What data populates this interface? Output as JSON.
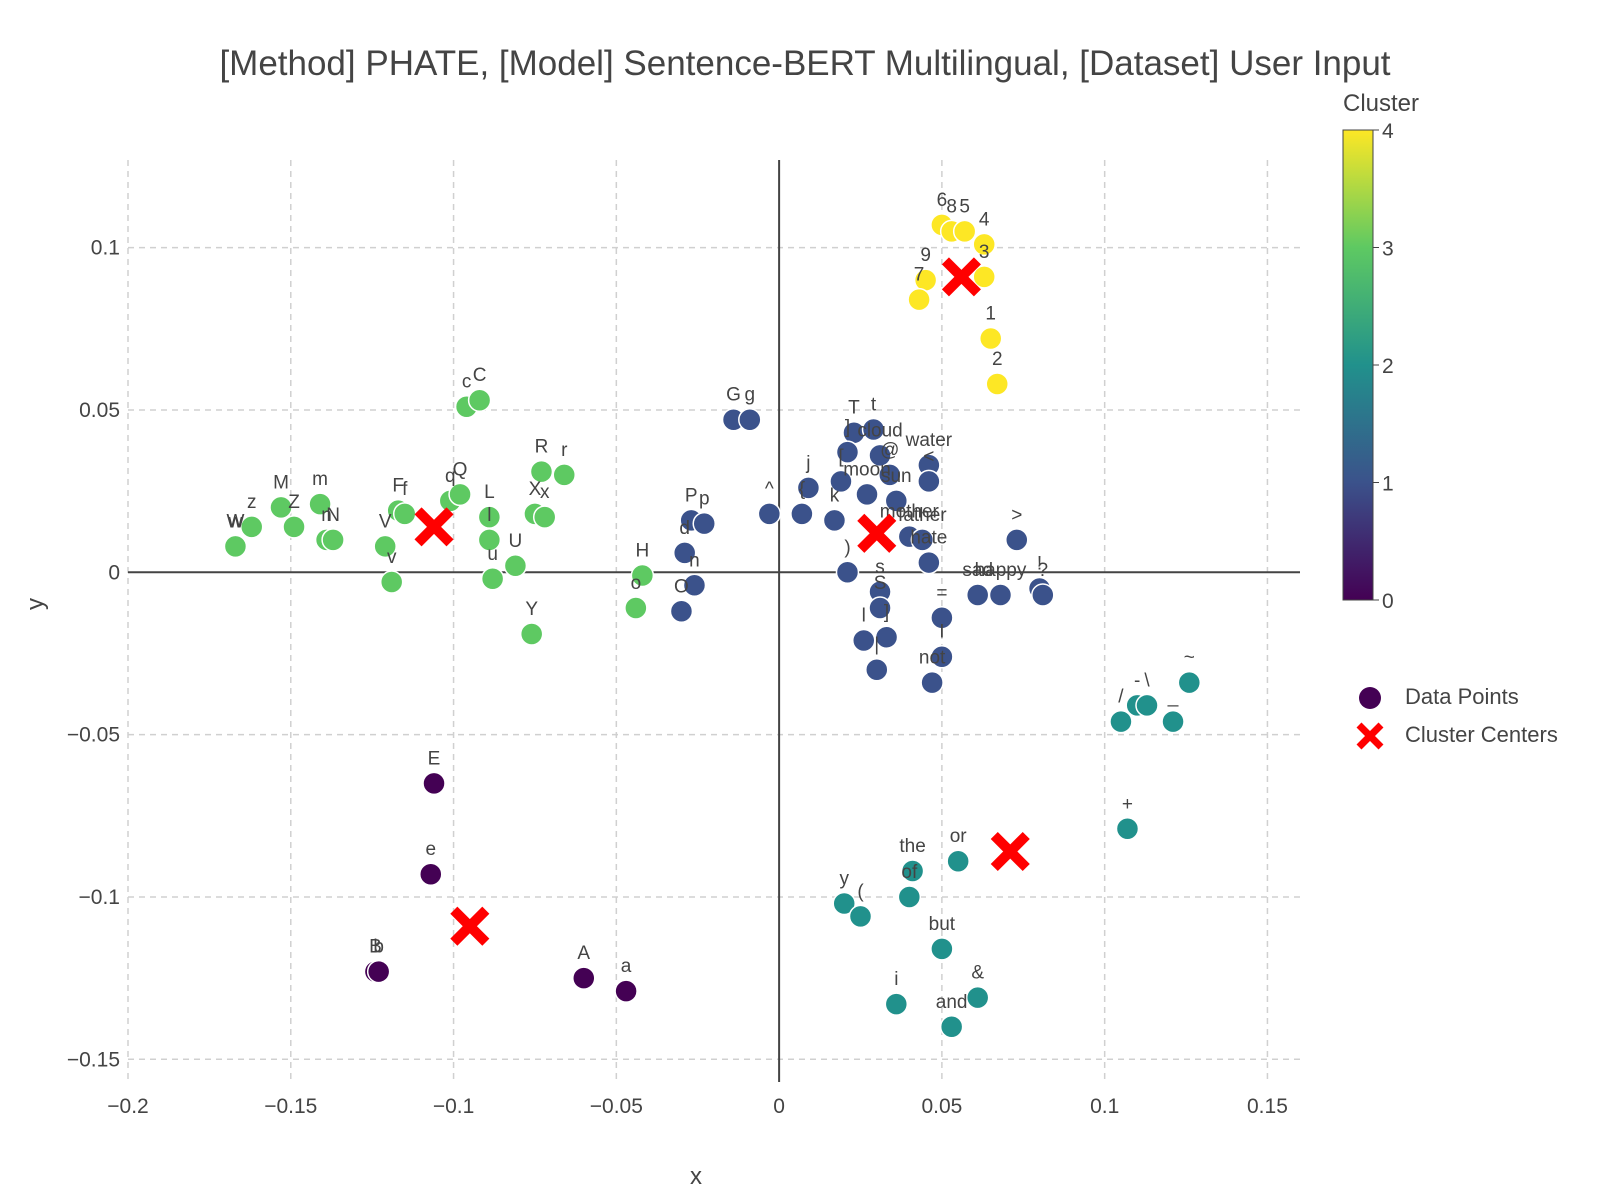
{
  "title": "[Method] PHATE, [Model] Sentence-BERT Multilingual, [Dataset] User Input",
  "colorbar": {
    "title": "Cluster",
    "ticks": [
      "0",
      "1",
      "2",
      "3",
      "4"
    ],
    "colormap": "viridis",
    "stops": [
      "#440154",
      "#3b528b",
      "#21918c",
      "#5ec962",
      "#fde725"
    ]
  },
  "legend": {
    "items": [
      {
        "label": "Data Points",
        "color": "#440154",
        "symbol": "circle"
      },
      {
        "label": "Cluster Centers",
        "color": "#ff0000",
        "symbol": "x"
      }
    ]
  },
  "chart_data": {
    "type": "scatter",
    "title": "[Method] PHATE, [Model] Sentence-BERT Multilingual, [Dataset] User Input",
    "xlabel": "x",
    "ylabel": "y",
    "xlim": [
      -0.2,
      0.16
    ],
    "ylim": [
      -0.157,
      0.127
    ],
    "x_ticks": [
      -0.2,
      -0.15,
      -0.1,
      -0.05,
      0,
      0.05,
      0.1,
      0.15
    ],
    "x_tick_labels": [
      "−0.2",
      "−0.15",
      "−0.1",
      "−0.05",
      "0",
      "0.05",
      "0.1",
      "0.15"
    ],
    "y_ticks": [
      -0.15,
      -0.1,
      -0.05,
      0,
      0.05,
      0.1
    ],
    "y_tick_labels": [
      "−0.15",
      "−0.1",
      "−0.05",
      "0",
      "0.05",
      "0.1"
    ],
    "grid": true,
    "legend_position": "right",
    "cluster_colors": [
      "#440154",
      "#3b528b",
      "#21918c",
      "#5ec962",
      "#fde725"
    ],
    "points": [
      {
        "label": "E",
        "x": -0.106,
        "y": -0.065,
        "cluster": 0
      },
      {
        "label": "e",
        "x": -0.107,
        "y": -0.093,
        "cluster": 0
      },
      {
        "label": "B",
        "x": -0.124,
        "y": -0.123,
        "cluster": 0
      },
      {
        "label": "b",
        "x": -0.123,
        "y": -0.123,
        "cluster": 0
      },
      {
        "label": "A",
        "x": -0.06,
        "y": -0.125,
        "cluster": 0
      },
      {
        "label": "a",
        "x": -0.047,
        "y": -0.129,
        "cluster": 0
      },
      {
        "label": "G",
        "x": -0.014,
        "y": 0.047,
        "cluster": 1
      },
      {
        "label": "g",
        "x": -0.009,
        "y": 0.047,
        "cluster": 1
      },
      {
        "label": "P",
        "x": -0.027,
        "y": 0.016,
        "cluster": 1
      },
      {
        "label": "p",
        "x": -0.023,
        "y": 0.015,
        "cluster": 1
      },
      {
        "label": "d",
        "x": -0.029,
        "y": 0.006,
        "cluster": 1
      },
      {
        "label": "n",
        "x": -0.026,
        "y": -0.004,
        "cluster": 1
      },
      {
        "label": "O",
        "x": -0.03,
        "y": -0.012,
        "cluster": 1
      },
      {
        "label": "^",
        "x": -0.003,
        "y": 0.018,
        "cluster": 1
      },
      {
        "label": "{",
        "x": 0.007,
        "y": 0.018,
        "cluster": 1
      },
      {
        "label": "j",
        "x": 0.009,
        "y": 0.026,
        "cluster": 1
      },
      {
        "label": "k",
        "x": 0.017,
        "y": 0.016,
        "cluster": 1
      },
      {
        "label": "T",
        "x": 0.023,
        "y": 0.043,
        "cluster": 1
      },
      {
        "label": "t",
        "x": 0.029,
        "y": 0.044,
        "cluster": 1
      },
      {
        "label": "]",
        "x": 0.021,
        "y": 0.037,
        "cluster": 1
      },
      {
        "label": "[",
        "x": 0.019,
        "y": 0.028,
        "cluster": 1
      },
      {
        "label": "cloud",
        "x": 0.031,
        "y": 0.036,
        "cluster": 1
      },
      {
        "label": "water",
        "x": 0.046,
        "y": 0.033,
        "cluster": 1
      },
      {
        "label": "<",
        "x": 0.046,
        "y": 0.028,
        "cluster": 1
      },
      {
        "label": "@",
        "x": 0.034,
        "y": 0.03,
        "cluster": 1
      },
      {
        "label": "moon",
        "x": 0.027,
        "y": 0.024,
        "cluster": 1
      },
      {
        "label": "sun",
        "x": 0.036,
        "y": 0.022,
        "cluster": 1
      },
      {
        "label": "mother",
        "x": 0.04,
        "y": 0.011,
        "cluster": 1
      },
      {
        "label": "father",
        "x": 0.044,
        "y": 0.01,
        "cluster": 1
      },
      {
        "label": "hate",
        "x": 0.046,
        "y": 0.003,
        "cluster": 1
      },
      {
        "label": ")",
        "x": 0.021,
        "y": 0.0,
        "cluster": 1
      },
      {
        "label": "s",
        "x": 0.031,
        "y": -0.006,
        "cluster": 1
      },
      {
        "label": "S",
        "x": 0.031,
        "y": -0.011,
        "cluster": 1
      },
      {
        "label": "l",
        "x": 0.026,
        "y": -0.021,
        "cluster": 1
      },
      {
        "label": "]",
        "x": 0.033,
        "y": -0.02,
        "cluster": 1
      },
      {
        "label": "|",
        "x": 0.03,
        "y": -0.03,
        "cluster": 1
      },
      {
        "label": "=",
        "x": 0.05,
        "y": -0.014,
        "cluster": 1
      },
      {
        "label": "I",
        "x": 0.05,
        "y": -0.026,
        "cluster": 1
      },
      {
        "label": "not",
        "x": 0.047,
        "y": -0.034,
        "cluster": 1
      },
      {
        "label": "sad",
        "x": 0.061,
        "y": -0.007,
        "cluster": 1
      },
      {
        "label": "happy",
        "x": 0.068,
        "y": -0.007,
        "cluster": 1
      },
      {
        "label": ">",
        "x": 0.073,
        "y": 0.01,
        "cluster": 1
      },
      {
        "label": "!",
        "x": 0.08,
        "y": -0.005,
        "cluster": 1
      },
      {
        "label": "?",
        "x": 0.081,
        "y": -0.007,
        "cluster": 1
      },
      {
        "label": "/",
        "x": 0.105,
        "y": -0.046,
        "cluster": 2
      },
      {
        "label": "-",
        "x": 0.11,
        "y": -0.041,
        "cluster": 2
      },
      {
        "label": "\\",
        "x": 0.113,
        "y": -0.041,
        "cluster": 2
      },
      {
        "label": "_",
        "x": 0.121,
        "y": -0.046,
        "cluster": 2
      },
      {
        "label": "~",
        "x": 0.126,
        "y": -0.034,
        "cluster": 2
      },
      {
        "label": "+",
        "x": 0.107,
        "y": -0.079,
        "cluster": 2
      },
      {
        "label": "the",
        "x": 0.041,
        "y": -0.092,
        "cluster": 2
      },
      {
        "label": "or",
        "x": 0.055,
        "y": -0.089,
        "cluster": 2
      },
      {
        "label": "of",
        "x": 0.04,
        "y": -0.1,
        "cluster": 2
      },
      {
        "label": "y",
        "x": 0.02,
        "y": -0.102,
        "cluster": 2
      },
      {
        "label": "(",
        "x": 0.025,
        "y": -0.106,
        "cluster": 2
      },
      {
        "label": "but",
        "x": 0.05,
        "y": -0.116,
        "cluster": 2
      },
      {
        "label": "&",
        "x": 0.061,
        "y": -0.131,
        "cluster": 2
      },
      {
        "label": "i",
        "x": 0.036,
        "y": -0.133,
        "cluster": 2
      },
      {
        "label": "and",
        "x": 0.053,
        "y": -0.14,
        "cluster": 2
      },
      {
        "label": "c",
        "x": -0.096,
        "y": 0.051,
        "cluster": 3
      },
      {
        "label": "C",
        "x": -0.092,
        "y": 0.053,
        "cluster": 3
      },
      {
        "label": "R",
        "x": -0.073,
        "y": 0.031,
        "cluster": 3
      },
      {
        "label": "r",
        "x": -0.066,
        "y": 0.03,
        "cluster": 3
      },
      {
        "label": "M",
        "x": -0.153,
        "y": 0.02,
        "cluster": 3
      },
      {
        "label": "m",
        "x": -0.141,
        "y": 0.021,
        "cluster": 3
      },
      {
        "label": "Z",
        "x": -0.149,
        "y": 0.014,
        "cluster": 3
      },
      {
        "label": "z",
        "x": -0.162,
        "y": 0.014,
        "cluster": 3
      },
      {
        "label": "W",
        "x": -0.167,
        "y": 0.008,
        "cluster": 3
      },
      {
        "label": "w",
        "x": -0.167,
        "y": 0.008,
        "cluster": 3
      },
      {
        "label": "n",
        "x": -0.139,
        "y": 0.01,
        "cluster": 3
      },
      {
        "label": "N",
        "x": -0.137,
        "y": 0.01,
        "cluster": 3
      },
      {
        "label": "F",
        "x": -0.117,
        "y": 0.019,
        "cluster": 3
      },
      {
        "label": "f",
        "x": -0.115,
        "y": 0.018,
        "cluster": 3
      },
      {
        "label": "V",
        "x": -0.121,
        "y": 0.008,
        "cluster": 3
      },
      {
        "label": "v",
        "x": -0.119,
        "y": -0.003,
        "cluster": 3
      },
      {
        "label": "q",
        "x": -0.101,
        "y": 0.022,
        "cluster": 3
      },
      {
        "label": "Q",
        "x": -0.098,
        "y": 0.024,
        "cluster": 3
      },
      {
        "label": "L",
        "x": -0.089,
        "y": 0.017,
        "cluster": 3
      },
      {
        "label": "l",
        "x": -0.089,
        "y": 0.01,
        "cluster": 3
      },
      {
        "label": "X",
        "x": -0.075,
        "y": 0.018,
        "cluster": 3
      },
      {
        "label": "x",
        "x": -0.072,
        "y": 0.017,
        "cluster": 3
      },
      {
        "label": "U",
        "x": -0.081,
        "y": 0.002,
        "cluster": 3
      },
      {
        "label": "u",
        "x": -0.088,
        "y": -0.002,
        "cluster": 3
      },
      {
        "label": "Y",
        "x": -0.076,
        "y": -0.019,
        "cluster": 3
      },
      {
        "label": "H",
        "x": -0.042,
        "y": -0.001,
        "cluster": 3
      },
      {
        "label": "o",
        "x": -0.044,
        "y": -0.011,
        "cluster": 3
      },
      {
        "label": "6",
        "x": 0.05,
        "y": 0.107,
        "cluster": 4
      },
      {
        "label": "8",
        "x": 0.053,
        "y": 0.105,
        "cluster": 4
      },
      {
        "label": "5",
        "x": 0.057,
        "y": 0.105,
        "cluster": 4
      },
      {
        "label": "4",
        "x": 0.063,
        "y": 0.101,
        "cluster": 4
      },
      {
        "label": "9",
        "x": 0.045,
        "y": 0.09,
        "cluster": 4
      },
      {
        "label": "3",
        "x": 0.063,
        "y": 0.091,
        "cluster": 4
      },
      {
        "label": "7",
        "x": 0.043,
        "y": 0.084,
        "cluster": 4
      },
      {
        "label": "1",
        "x": 0.065,
        "y": 0.072,
        "cluster": 4
      },
      {
        "label": "2",
        "x": 0.067,
        "y": 0.058,
        "cluster": 4
      }
    ],
    "centers": [
      {
        "x": -0.106,
        "y": 0.014
      },
      {
        "x": 0.03,
        "y": 0.012
      },
      {
        "x": 0.056,
        "y": 0.091
      },
      {
        "x": -0.095,
        "y": -0.109
      },
      {
        "x": 0.071,
        "y": -0.086
      }
    ]
  }
}
